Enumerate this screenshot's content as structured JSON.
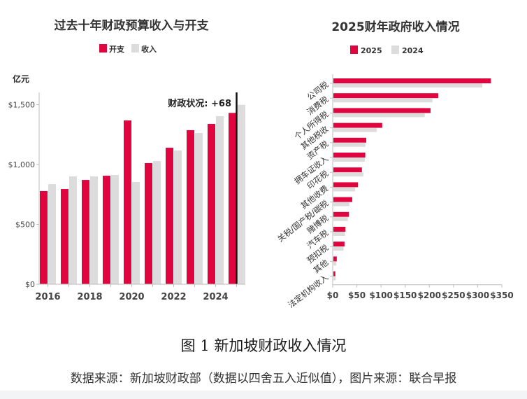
{
  "figure": {
    "title": "图 1  新加坡财政收入情况",
    "source": "数据来源：新加坡财政部（数据以四舍五入近似值），图片来源：联合早报"
  },
  "colors": {
    "primary": "#e0053f",
    "secondary": "#dcdcdc",
    "axis": "#bdbdbd",
    "text": "#333333",
    "marker": "#111111"
  },
  "chart_data": [
    {
      "type": "bar",
      "orientation": "vertical",
      "title": "过去十年财政预算收入与开支",
      "unit_label": "亿元",
      "categories": [
        "2016",
        "2017",
        "2018",
        "2019",
        "2020",
        "2021",
        "2022",
        "2023",
        "2024",
        "2025"
      ],
      "x_tick_labels": [
        "2016",
        "2018",
        "2020",
        "2022",
        "2024"
      ],
      "y_ticks": [
        0,
        500,
        1000,
        1500
      ],
      "y_tick_labels": [
        "$0",
        "$500",
        "$1,000",
        "$1,500"
      ],
      "ylim": [
        0,
        1600
      ],
      "grid": false,
      "legend": {
        "position": "top-center",
        "entries": [
          "开支",
          "收入"
        ]
      },
      "series": [
        {
          "name": "开支",
          "values": [
            778,
            795,
            871,
            906,
            1368,
            1012,
            1140,
            1287,
            1339,
            1431
          ]
        },
        {
          "name": "收入",
          "values": [
            836,
            901,
            901,
            912,
            854,
            1029,
            1117,
            1263,
            1404,
            1499
          ]
        }
      ],
      "annotation": {
        "text": "财政状况: +68",
        "category": "2025"
      }
    },
    {
      "type": "bar",
      "orientation": "horizontal",
      "title": "2025财年政府收入情况",
      "categories": [
        "公司税",
        "消费税",
        "个人所得税",
        "其他税收",
        "资产税",
        "拥车证收入",
        "印花税",
        "其他收费",
        "关税/国产税/碳税",
        "赌博税",
        "汽车税",
        "预扣税",
        "其他",
        "法定机构收入"
      ],
      "x_ticks": [
        0,
        50,
        100,
        150,
        200,
        250,
        300,
        350
      ],
      "x_tick_labels": [
        "$0",
        "$50",
        "$100",
        "$150",
        "$200",
        "$250",
        "$300",
        "$350"
      ],
      "xlim": [
        0,
        350
      ],
      "grid": false,
      "legend": {
        "position": "top-center",
        "entries": [
          "2025",
          "2024"
        ]
      },
      "series": [
        {
          "name": "2025",
          "values": [
            326,
            217,
            201,
            101,
            68,
            66,
            59,
            51,
            39,
            32,
            25,
            23,
            7,
            4
          ]
        },
        {
          "name": "2024",
          "values": [
            308,
            205,
            189,
            90,
            66,
            65,
            62,
            45,
            33,
            30,
            24,
            21,
            6,
            5
          ]
        }
      ]
    }
  ]
}
